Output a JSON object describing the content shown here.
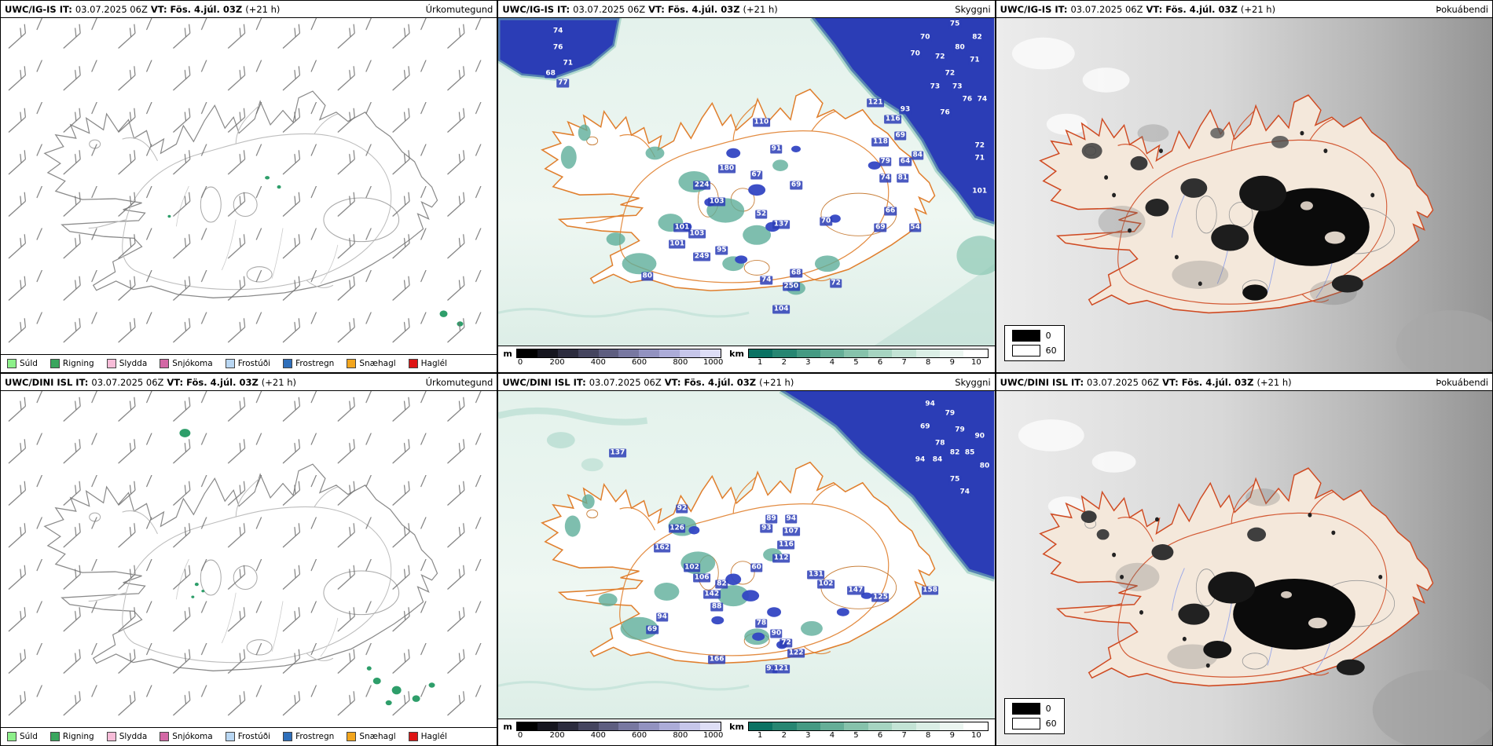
{
  "panels": [
    {
      "model": "UWC/IG-IS",
      "it_label": "IT:",
      "it_value": "03.07.2025 06Z",
      "vt_label": "VT:",
      "vt_value": "Fös. 4.júl. 03Z",
      "lead": "(+21 h)",
      "product": "Úrkomutegund"
    },
    {
      "model": "UWC/IG-IS",
      "it_label": "IT:",
      "it_value": "03.07.2025 06Z",
      "vt_label": "VT:",
      "vt_value": "Fös. 4.júl. 03Z",
      "lead": "(+21 h)",
      "product": "Skyggni"
    },
    {
      "model": "UWC/IG-IS",
      "it_label": "IT:",
      "it_value": "03.07.2025 06Z",
      "vt_label": "VT:",
      "vt_value": "Fös. 4.júl. 03Z",
      "lead": "(+21 h)",
      "product": "Þokuábendi"
    },
    {
      "model": "UWC/DINI ISL",
      "it_label": "IT:",
      "it_value": "03.07.2025 06Z",
      "vt_label": "VT:",
      "vt_value": "Fös. 4.júl. 03Z",
      "lead": "(+21 h)",
      "product": "Úrkomutegund"
    },
    {
      "model": "UWC/DINI ISL",
      "it_label": "IT:",
      "it_value": "03.07.2025 06Z",
      "vt_label": "VT:",
      "vt_value": "Fös. 4.júl. 03Z",
      "lead": "(+21 h)",
      "product": "Skyggni"
    },
    {
      "model": "UWC/DINI ISL",
      "it_label": "IT:",
      "it_value": "03.07.2025 06Z",
      "vt_label": "VT:",
      "vt_value": "Fös. 4.júl. 03Z",
      "lead": "(+21 h)",
      "product": "Þokuábendi"
    }
  ],
  "precip_legend": [
    {
      "label": "Súld",
      "color": "#8df08a"
    },
    {
      "label": "Rigning",
      "color": "#3aa55e"
    },
    {
      "label": "Slydda",
      "color": "#f7bcd8"
    },
    {
      "label": "Snjókoma",
      "color": "#d368a5"
    },
    {
      "label": "Frostúði",
      "color": "#b9d7f3"
    },
    {
      "label": "Frostregn",
      "color": "#2f6fba"
    },
    {
      "label": "Snæhagl",
      "color": "#f2a51d"
    },
    {
      "label": "Haglél",
      "color": "#dd1515"
    }
  ],
  "scales": {
    "m": {
      "unit": "m",
      "colors": [
        "#000000",
        "#16161f",
        "#2c2c3e",
        "#45455f",
        "#5e5e80",
        "#7878a1",
        "#9292c0",
        "#acacd8",
        "#c6c6ea",
        "#dedef6"
      ],
      "ticks": [
        "0",
        "200",
        "400",
        "600",
        "800",
        "1000"
      ],
      "tick_pos": [
        2,
        20,
        40,
        60,
        80,
        96
      ]
    },
    "km": {
      "unit": "km",
      "colors": [
        "#0a7263",
        "#278672",
        "#459a83",
        "#65ae97",
        "#86c2ab",
        "#a6d4c1",
        "#c3e3d5",
        "#daeee5",
        "#ecf6f1",
        "#ffffff"
      ],
      "ticks": [
        "1",
        "2",
        "3",
        "4",
        "5",
        "6",
        "7",
        "8",
        "9",
        "10"
      ],
      "tick_pos": [
        5,
        15,
        25,
        35,
        45,
        55,
        65,
        75,
        85,
        95
      ]
    }
  },
  "fog_legend": [
    {
      "label": "0",
      "color": "#000000"
    },
    {
      "label": "60",
      "color": "#ffffff"
    }
  ],
  "vis_values": {
    "top": [
      {
        "v": "74",
        "x": 12,
        "y": 4
      },
      {
        "v": "76",
        "x": 12,
        "y": 9
      },
      {
        "v": "71",
        "x": 14,
        "y": 14
      },
      {
        "v": "68",
        "x": 10.5,
        "y": 17
      },
      {
        "v": "77",
        "x": 13,
        "y": 20
      },
      {
        "v": "75",
        "x": 92,
        "y": 2
      },
      {
        "v": "82",
        "x": 96.5,
        "y": 6
      },
      {
        "v": "70",
        "x": 86,
        "y": 6
      },
      {
        "v": "80",
        "x": 93,
        "y": 9
      },
      {
        "v": "72",
        "x": 89,
        "y": 12
      },
      {
        "v": "71",
        "x": 96,
        "y": 13
      },
      {
        "v": "70",
        "x": 84,
        "y": 11
      },
      {
        "v": "72",
        "x": 91,
        "y": 17
      },
      {
        "v": "73",
        "x": 88,
        "y": 21
      },
      {
        "v": "73",
        "x": 92.5,
        "y": 21
      },
      {
        "v": "76",
        "x": 94.5,
        "y": 25
      },
      {
        "v": "74",
        "x": 97.5,
        "y": 25
      },
      {
        "v": "76",
        "x": 90,
        "y": 29
      },
      {
        "v": "72",
        "x": 97,
        "y": 39
      },
      {
        "v": "71",
        "x": 97,
        "y": 43
      },
      {
        "v": "101",
        "x": 97,
        "y": 53
      },
      {
        "v": "121",
        "x": 76,
        "y": 26
      },
      {
        "v": "116",
        "x": 79.5,
        "y": 31
      },
      {
        "v": "93",
        "x": 82,
        "y": 28
      },
      {
        "v": "118",
        "x": 77,
        "y": 38
      },
      {
        "v": "69",
        "x": 81,
        "y": 36
      },
      {
        "v": "84",
        "x": 84.5,
        "y": 42
      },
      {
        "v": "79",
        "x": 78,
        "y": 44
      },
      {
        "v": "64",
        "x": 82,
        "y": 44
      },
      {
        "v": "74",
        "x": 78,
        "y": 49
      },
      {
        "v": "81",
        "x": 81.5,
        "y": 49
      },
      {
        "v": "110",
        "x": 53,
        "y": 32
      },
      {
        "v": "91",
        "x": 56,
        "y": 40
      },
      {
        "v": "180",
        "x": 46,
        "y": 46
      },
      {
        "v": "67",
        "x": 52,
        "y": 48
      },
      {
        "v": "69",
        "x": 60,
        "y": 51
      },
      {
        "v": "70",
        "x": 66,
        "y": 62
      },
      {
        "v": "66",
        "x": 79,
        "y": 59
      },
      {
        "v": "69",
        "x": 77,
        "y": 64
      },
      {
        "v": "54",
        "x": 84,
        "y": 64
      },
      {
        "v": "224",
        "x": 41,
        "y": 51
      },
      {
        "v": "52",
        "x": 53,
        "y": 60
      },
      {
        "v": "137",
        "x": 57,
        "y": 63
      },
      {
        "v": "103",
        "x": 44,
        "y": 56
      },
      {
        "v": "101",
        "x": 37,
        "y": 64
      },
      {
        "v": "103",
        "x": 40,
        "y": 66
      },
      {
        "v": "101",
        "x": 36,
        "y": 69
      },
      {
        "v": "95",
        "x": 45,
        "y": 71
      },
      {
        "v": "249",
        "x": 41,
        "y": 73
      },
      {
        "v": "80",
        "x": 30,
        "y": 79
      },
      {
        "v": "74",
        "x": 54,
        "y": 80
      },
      {
        "v": "68",
        "x": 60,
        "y": 78
      },
      {
        "v": "250",
        "x": 59,
        "y": 82
      },
      {
        "v": "72",
        "x": 68,
        "y": 81
      },
      {
        "v": "104",
        "x": 57,
        "y": 89
      }
    ],
    "bottom": [
      {
        "v": "94",
        "x": 87,
        "y": 4
      },
      {
        "v": "79",
        "x": 91,
        "y": 7
      },
      {
        "v": "69",
        "x": 86,
        "y": 11
      },
      {
        "v": "79",
        "x": 93,
        "y": 12
      },
      {
        "v": "90",
        "x": 97,
        "y": 14
      },
      {
        "v": "78",
        "x": 89,
        "y": 16
      },
      {
        "v": "82",
        "x": 92,
        "y": 19
      },
      {
        "v": "85",
        "x": 95,
        "y": 19
      },
      {
        "v": "94",
        "x": 85,
        "y": 21
      },
      {
        "v": "84",
        "x": 88.5,
        "y": 21
      },
      {
        "v": "80",
        "x": 98,
        "y": 23
      },
      {
        "v": "75",
        "x": 92,
        "y": 27
      },
      {
        "v": "74",
        "x": 94,
        "y": 31
      },
      {
        "v": "137",
        "x": 24,
        "y": 19
      },
      {
        "v": "92",
        "x": 37,
        "y": 36
      },
      {
        "v": "126",
        "x": 36,
        "y": 42
      },
      {
        "v": "162",
        "x": 33,
        "y": 48
      },
      {
        "v": "89",
        "x": 55,
        "y": 39
      },
      {
        "v": "94",
        "x": 59,
        "y": 39
      },
      {
        "v": "93",
        "x": 54,
        "y": 42
      },
      {
        "v": "107",
        "x": 59,
        "y": 43
      },
      {
        "v": "116",
        "x": 58,
        "y": 47
      },
      {
        "v": "112",
        "x": 57,
        "y": 51
      },
      {
        "v": "60",
        "x": 52,
        "y": 54
      },
      {
        "v": "102",
        "x": 39,
        "y": 54
      },
      {
        "v": "106",
        "x": 41,
        "y": 57
      },
      {
        "v": "82",
        "x": 45,
        "y": 59
      },
      {
        "v": "142",
        "x": 43,
        "y": 62
      },
      {
        "v": "88",
        "x": 44,
        "y": 66
      },
      {
        "v": "131",
        "x": 64,
        "y": 56
      },
      {
        "v": "102",
        "x": 66,
        "y": 59
      },
      {
        "v": "147",
        "x": 72,
        "y": 61
      },
      {
        "v": "125",
        "x": 77,
        "y": 63
      },
      {
        "v": "158",
        "x": 87,
        "y": 61
      },
      {
        "v": "94",
        "x": 33,
        "y": 69
      },
      {
        "v": "69",
        "x": 31,
        "y": 73
      },
      {
        "v": "78",
        "x": 53,
        "y": 71
      },
      {
        "v": "90",
        "x": 56,
        "y": 74
      },
      {
        "v": "72",
        "x": 58,
        "y": 77
      },
      {
        "v": "122",
        "x": 60,
        "y": 80
      },
      {
        "v": "166",
        "x": 44,
        "y": 82
      },
      {
        "v": "93",
        "x": 55,
        "y": 85
      },
      {
        "v": "121",
        "x": 57,
        "y": 85
      }
    ]
  }
}
